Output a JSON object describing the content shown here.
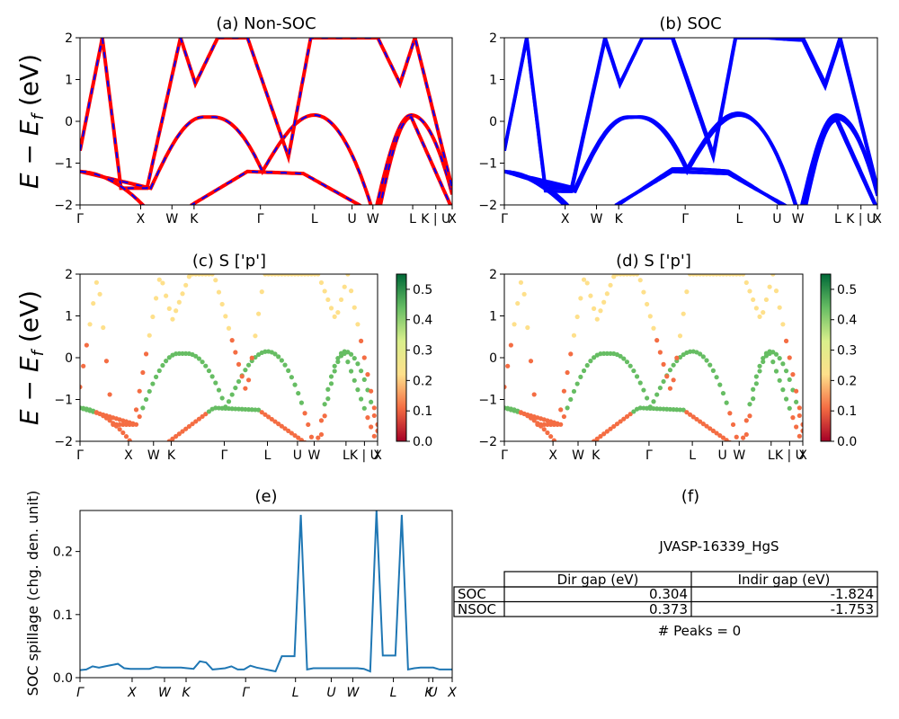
{
  "colors": {
    "nsoc": "#ff0000",
    "soc": "#0000ff",
    "spillage": "#1f77b4",
    "cmap": [
      "#a50026",
      "#f46d43",
      "#fee08b",
      "#d9ef8b",
      "#66bd63",
      "#006837"
    ]
  },
  "chart_data": [
    {
      "id": "a",
      "type": "line",
      "title": "(a) Non-SOC",
      "ylabel": "E − E_f (eV)",
      "ylim": [
        -2,
        2
      ],
      "yticks": [
        "2",
        "1",
        "0",
        "−1",
        "−2"
      ],
      "xticks": [
        "Γ",
        "X",
        "W",
        "K",
        "Γ",
        "L",
        "U",
        "W",
        "L",
        "K | U",
        "X"
      ],
      "series": [
        {
          "name": "Non-SOC bands",
          "style": "red solid + blue dashed"
        }
      ]
    },
    {
      "id": "b",
      "type": "line",
      "title": "(b) SOC",
      "ylim": [
        -2,
        2
      ],
      "yticks": [
        "2",
        "1",
        "0",
        "−1",
        "−2"
      ],
      "xticks": [
        "Γ",
        "X",
        "W",
        "K",
        "Γ",
        "L",
        "U",
        "W",
        "L",
        "K | U",
        "X"
      ],
      "series": [
        {
          "name": "SOC bands",
          "style": "blue solid"
        }
      ]
    },
    {
      "id": "c",
      "type": "scatter",
      "title": "(c)  S ['p']",
      "ylabel": "E − E_f (eV)",
      "ylim": [
        -2,
        2
      ],
      "yticks": [
        "2",
        "1",
        "0",
        "−1",
        "−2"
      ],
      "xticks": [
        "Γ",
        "X",
        "W",
        "K",
        "Γ",
        "L",
        "U",
        "W",
        "L",
        "K | U",
        "X"
      ],
      "colorbar": {
        "ticks": [
          "0.5",
          "0.4",
          "0.3",
          "0.2",
          "0.1",
          "0.0"
        ],
        "range": [
          0,
          0.55
        ]
      }
    },
    {
      "id": "d",
      "type": "scatter",
      "title": "(d) S ['p']",
      "ylim": [
        -2,
        2
      ],
      "yticks": [
        "2",
        "1",
        "0",
        "−1",
        "−2"
      ],
      "xticks": [
        "Γ",
        "X",
        "W",
        "K",
        "Γ",
        "L",
        "U",
        "W",
        "L",
        "K | U",
        "X"
      ],
      "colorbar": {
        "ticks": [
          "0.5",
          "0.4",
          "0.3",
          "0.2",
          "0.1",
          "0.0"
        ],
        "range": [
          0,
          0.55
        ]
      }
    },
    {
      "id": "e",
      "type": "line",
      "title": "(e)",
      "ylabel": "SOC spillage (chg. den. unit)",
      "ylim": [
        0,
        0.265
      ],
      "yticks": [
        "0.2",
        "0.1",
        "0.0"
      ],
      "xticks": [
        "Γ",
        "X",
        "W",
        "K",
        "Γ",
        "L",
        "U",
        "W",
        "L",
        "K",
        "U",
        "X"
      ],
      "series": [
        {
          "values": [
            0.012,
            0.013,
            0.018,
            0.016,
            0.018,
            0.02,
            0.022,
            0.015,
            0.014,
            0.014,
            0.014,
            0.014,
            0.017,
            0.016,
            0.016,
            0.016,
            0.016,
            0.015,
            0.014,
            0.026,
            0.024,
            0.013,
            0.014,
            0.015,
            0.018,
            0.013,
            0.013,
            0.019,
            0.016,
            0.014,
            0.012,
            0.01,
            0.034,
            0.034,
            0.034,
            0.258,
            0.013,
            0.015,
            0.015,
            0.015,
            0.015,
            0.015,
            0.015,
            0.015,
            0.015,
            0.014,
            0.01,
            0.265,
            0.035,
            0.035,
            0.035,
            0.258,
            0.013,
            0.015,
            0.016,
            0.016,
            0.016,
            0.013,
            0.013,
            0.013
          ]
        }
      ]
    },
    {
      "id": "f",
      "type": "table",
      "title": "(f)",
      "material": "JVASP-16339_HgS",
      "columns": [
        "",
        "Dir gap (eV)",
        "Indir gap (eV)"
      ],
      "rows": [
        [
          "SOC",
          "0.304",
          "-1.824"
        ],
        [
          "NSOC",
          "0.373",
          "-1.753"
        ]
      ],
      "footer": "# Peaks = 0"
    }
  ]
}
